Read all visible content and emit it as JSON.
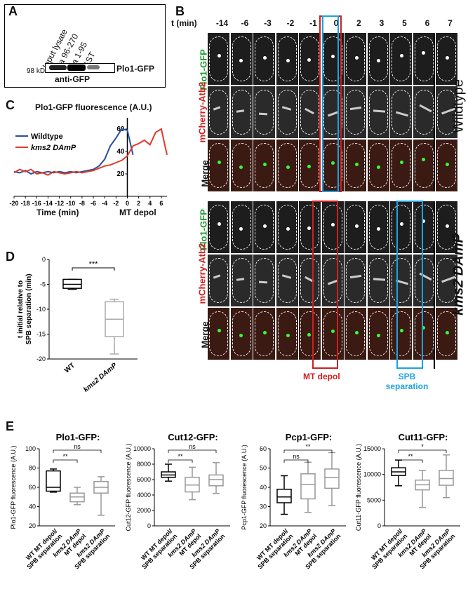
{
  "panelA": {
    "label": "A",
    "lanes": [
      "Input lysate",
      "aa 96-270",
      "aa 1-95",
      "GST"
    ],
    "marker": "98 kD",
    "band_label": "Plo1-GFP",
    "antibody": "anti-GFP"
  },
  "panelB": {
    "label": "B",
    "time_header": "t (min)",
    "times": [
      "-14",
      "-6",
      "-3",
      "-2",
      "-1",
      "0",
      "2",
      "3",
      "5",
      "6",
      "7"
    ],
    "rows": [
      "Plo1-GFP",
      "mCherry-Atb2",
      "Merge"
    ],
    "strain1": "Wildtype",
    "strain2": "kms2 DAmP",
    "mt_depol": "MT depol",
    "spb_sep": "SPB separation"
  },
  "panelC": {
    "label": "C",
    "chart_data": {
      "type": "line",
      "title": "Plo1-GFP fluorescence (A.U.)",
      "xlabel": "Time (min)",
      "xlabel2": "MT depol",
      "xlim": [
        -20,
        7
      ],
      "ylim": [
        0,
        70
      ],
      "yticks": [
        20,
        40,
        60
      ],
      "xticks": [
        -20,
        -18,
        -16,
        -14,
        -12,
        -10,
        -8,
        -6,
        -4,
        -2,
        0,
        2,
        4,
        6
      ],
      "series": [
        {
          "name": "Wildtype",
          "color": "#2b4fa0",
          "x": [
            -20,
            -19,
            -18,
            -17,
            -16,
            -15,
            -14,
            -13,
            -12,
            -11,
            -10,
            -9,
            -8,
            -7,
            -6,
            -5,
            -4,
            -3,
            -2,
            -1,
            0,
            1
          ],
          "y": [
            22,
            21,
            23,
            20,
            22,
            21,
            22,
            21,
            22,
            21,
            22,
            21,
            22,
            23,
            24,
            27,
            33,
            45,
            52,
            60,
            59,
            37
          ]
        },
        {
          "name": "kms2 DAmP",
          "color": "#e03a2a",
          "x": [
            -20,
            -19,
            -18,
            -17,
            -16,
            -15,
            -14,
            -13,
            -12,
            -11,
            -10,
            -9,
            -8,
            -7,
            -6,
            -5,
            -4,
            -3,
            -2,
            -1,
            0,
            1,
            2,
            3,
            4,
            5,
            6,
            7
          ],
          "y": [
            21,
            24,
            22,
            24,
            20,
            21,
            19,
            22,
            21,
            20,
            21,
            22,
            21,
            22,
            23,
            25,
            27,
            28,
            30,
            32,
            36,
            45,
            47,
            50,
            46,
            57,
            60,
            37
          ]
        }
      ]
    }
  },
  "panelD": {
    "label": "D",
    "chart_data": {
      "type": "box",
      "ylabel": "t initial relative to SPB separation (min)",
      "ylim": [
        -20,
        0
      ],
      "yticks": [
        0,
        -5,
        -10,
        -15,
        -20
      ],
      "categories": [
        "WT",
        "kms2 DAmP"
      ],
      "sig": "***",
      "boxes": [
        {
          "min": -6,
          "q1": -5.8,
          "median": -5,
          "q3": -4,
          "max": -4
        },
        {
          "min": -19,
          "q1": -15.5,
          "median": -12,
          "q3": -8.5,
          "max": -8
        }
      ]
    }
  },
  "panelE": {
    "label": "E",
    "charts": [
      {
        "title": "Plo1-GFP:",
        "ylabel": "Plo1-GFP fluorescence (A.U.)",
        "ylim": [
          20,
          100
        ],
        "yticks": [
          20,
          40,
          60,
          80,
          100
        ],
        "boxes": [
          {
            "min": 55,
            "q1": 56,
            "median": 60,
            "q3": 77,
            "max": 79
          },
          {
            "min": 42,
            "q1": 45,
            "median": 50,
            "q3": 54,
            "max": 60
          },
          {
            "min": 31,
            "q1": 54,
            "median": 60,
            "q3": 66,
            "max": 71
          }
        ],
        "sig": [
          {
            "a": 0,
            "b": 1,
            "t": "**"
          },
          {
            "a": 0,
            "b": 2,
            "t": "ns"
          }
        ]
      },
      {
        "title": "Cut12-GFP:",
        "ylabel": "Cut12-GFP fluorescence (A.U.)",
        "ylim": [
          0,
          10000
        ],
        "yticks": [
          0,
          2000,
          4000,
          6000,
          8000,
          10000
        ],
        "boxes": [
          {
            "min": 5800,
            "q1": 6300,
            "median": 6600,
            "q3": 7000,
            "max": 8000
          },
          {
            "min": 3400,
            "q1": 4400,
            "median": 5300,
            "q3": 6300,
            "max": 7600
          },
          {
            "min": 4200,
            "q1": 5200,
            "median": 6000,
            "q3": 6600,
            "max": 8200
          }
        ],
        "sig": [
          {
            "a": 0,
            "b": 1,
            "t": "**"
          },
          {
            "a": 0,
            "b": 2,
            "t": "ns"
          }
        ]
      },
      {
        "title": "Pcp1-GFP:",
        "ylabel": "Pcp1-GFP fluorescence (A.U.)",
        "ylim": [
          20,
          60
        ],
        "yticks": [
          20,
          30,
          40,
          50,
          60
        ],
        "boxes": [
          {
            "min": 26,
            "q1": 32,
            "median": 35,
            "q3": 39,
            "max": 46
          },
          {
            "min": 27,
            "q1": 34,
            "median": 41.5,
            "q3": 47,
            "max": 53
          },
          {
            "min": 30.5,
            "q1": 39.5,
            "median": 45,
            "q3": 49.5,
            "max": 58
          }
        ],
        "sig": [
          {
            "a": 0,
            "b": 1,
            "t": "ns"
          },
          {
            "a": 0,
            "b": 2,
            "t": "**"
          }
        ]
      },
      {
        "title": "Cut11-GFP:",
        "ylabel": "Cut11-GFP fluorescence (A.U.)",
        "ylim": [
          0,
          15000
        ],
        "yticks": [
          0,
          5000,
          10000,
          15000
        ],
        "boxes": [
          {
            "min": 7800,
            "q1": 9800,
            "median": 10500,
            "q3": 11300,
            "max": 12800
          },
          {
            "min": 3600,
            "q1": 7000,
            "median": 8000,
            "q3": 8900,
            "max": 10800
          },
          {
            "min": 5500,
            "q1": 7900,
            "median": 9200,
            "q3": 10800,
            "max": 13800
          }
        ],
        "sig": [
          {
            "a": 0,
            "b": 1,
            "t": "**"
          },
          {
            "a": 0,
            "b": 2,
            "t": "*"
          }
        ]
      }
    ],
    "xcats": [
      "WT MT depol/ SPB separation",
      "kms2 DAmP MT depol",
      "kms2 DAmP SPB separation"
    ]
  }
}
